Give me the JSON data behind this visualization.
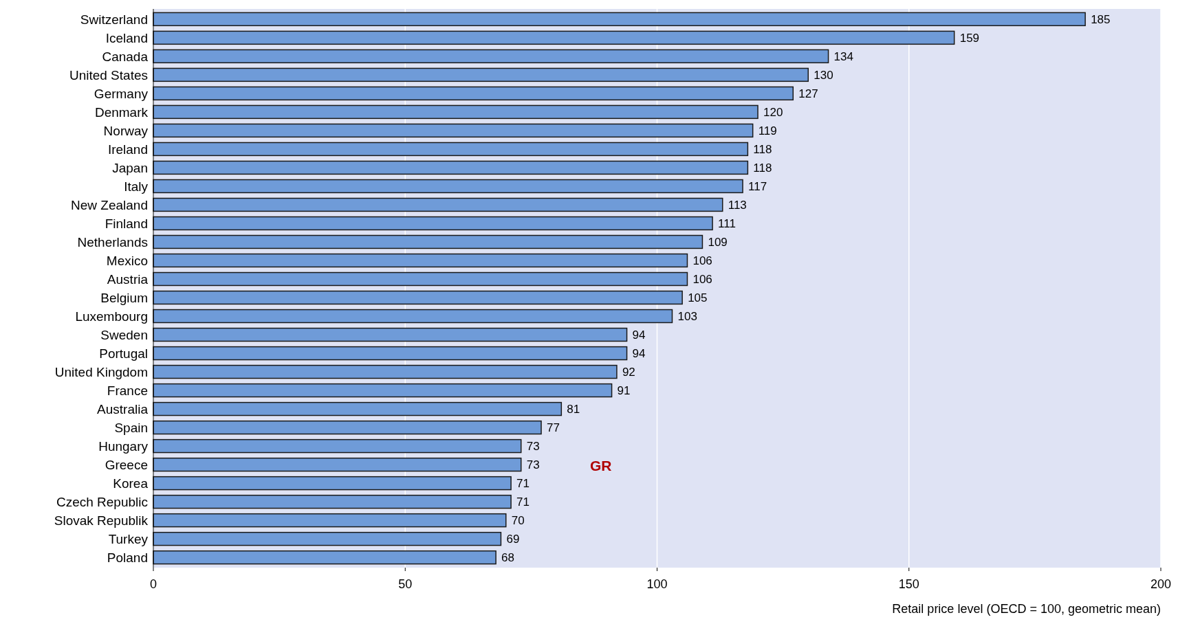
{
  "chart_data": {
    "type": "bar",
    "orientation": "horizontal",
    "categories": [
      "Switzerland",
      "Iceland",
      "Canada",
      "United States",
      "Germany",
      "Denmark",
      "Norway",
      "Ireland",
      "Japan",
      "Italy",
      "New Zealand",
      "Finland",
      "Netherlands",
      "Mexico",
      "Austria",
      "Belgium",
      "Luxembourg",
      "Sweden",
      "Portugal",
      "United Kingdom",
      "France",
      "Australia",
      "Spain",
      "Hungary",
      "Greece",
      "Korea",
      "Czech Republic",
      "Slovak Republik",
      "Turkey",
      "Poland"
    ],
    "values": [
      185,
      159,
      134,
      130,
      127,
      120,
      119,
      118,
      118,
      117,
      113,
      111,
      109,
      106,
      106,
      105,
      103,
      94,
      94,
      92,
      91,
      81,
      77,
      73,
      73,
      71,
      71,
      70,
      69,
      68
    ],
    "color": "#6f9bd8",
    "xlim": [
      0,
      200
    ],
    "xticks": [
      0,
      50,
      100,
      150,
      200
    ],
    "grid": "x",
    "data_labels": true,
    "xlabel": "Retail price level (OECD = 100, geometric mean)",
    "annotations": [
      "GR"
    ]
  }
}
